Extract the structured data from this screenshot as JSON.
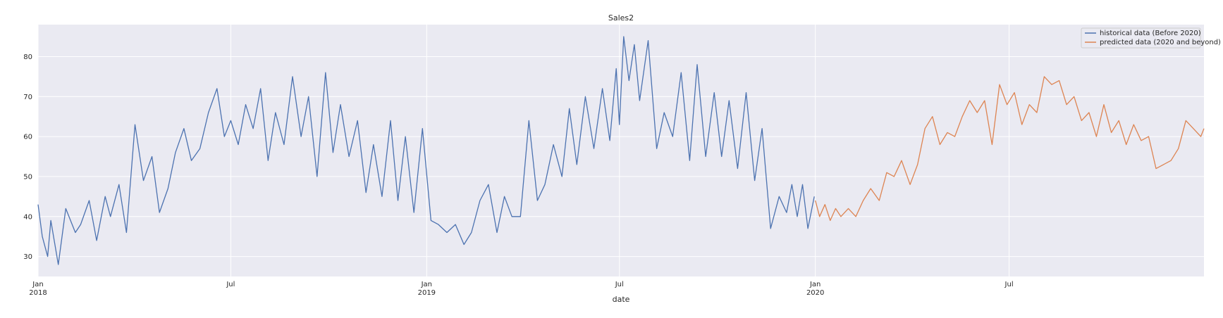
{
  "chart_data": {
    "type": "line",
    "title": "Sales2",
    "xlabel": "date",
    "ylabel": "",
    "ylim": [
      25,
      88
    ],
    "y_ticks": [
      30,
      40,
      50,
      60,
      70,
      80
    ],
    "x_range": [
      "2018-01-01",
      "2020-12-31"
    ],
    "x_ticks": [
      {
        "date": "2018-01-01",
        "label": "Jan",
        "sublabel": "2018"
      },
      {
        "date": "2018-07-01",
        "label": "Jul",
        "sublabel": ""
      },
      {
        "date": "2019-01-01",
        "label": "Jan",
        "sublabel": "2019"
      },
      {
        "date": "2019-07-01",
        "label": "Jul",
        "sublabel": ""
      },
      {
        "date": "2020-01-01",
        "label": "Jan",
        "sublabel": "2020"
      },
      {
        "date": "2020-07-01",
        "label": "Jul",
        "sublabel": ""
      }
    ],
    "grid": true,
    "legend_position": "top-right",
    "series": [
      {
        "name": "historical data (Before 2020)",
        "color": "#4c72b0",
        "x": [
          "2018-01-01",
          "2018-01-05",
          "2018-01-10",
          "2018-01-13",
          "2018-01-20",
          "2018-01-27",
          "2018-02-05",
          "2018-02-10",
          "2018-02-18",
          "2018-02-25",
          "2018-03-05",
          "2018-03-10",
          "2018-03-18",
          "2018-03-25",
          "2018-04-02",
          "2018-04-10",
          "2018-04-18",
          "2018-04-25",
          "2018-05-03",
          "2018-05-10",
          "2018-05-18",
          "2018-05-25",
          "2018-06-02",
          "2018-06-10",
          "2018-06-18",
          "2018-06-25",
          "2018-07-01",
          "2018-07-08",
          "2018-07-15",
          "2018-07-22",
          "2018-07-29",
          "2018-08-05",
          "2018-08-12",
          "2018-08-20",
          "2018-08-28",
          "2018-09-05",
          "2018-09-12",
          "2018-09-20",
          "2018-09-28",
          "2018-10-05",
          "2018-10-12",
          "2018-10-20",
          "2018-10-28",
          "2018-11-05",
          "2018-11-12",
          "2018-11-20",
          "2018-11-28",
          "2018-12-05",
          "2018-12-12",
          "2018-12-20",
          "2018-12-28",
          "2019-01-05",
          "2019-01-12",
          "2019-01-20",
          "2019-01-28",
          "2019-02-05",
          "2019-02-12",
          "2019-02-20",
          "2019-02-28",
          "2019-03-08",
          "2019-03-15",
          "2019-03-22",
          "2019-03-30",
          "2019-04-07",
          "2019-04-15",
          "2019-04-22",
          "2019-04-30",
          "2019-05-08",
          "2019-05-15",
          "2019-05-22",
          "2019-05-30",
          "2019-06-07",
          "2019-06-15",
          "2019-06-22",
          "2019-06-28",
          "2019-07-01",
          "2019-07-05",
          "2019-07-10",
          "2019-07-15",
          "2019-07-20",
          "2019-07-28",
          "2019-08-05",
          "2019-08-12",
          "2019-08-20",
          "2019-08-28",
          "2019-09-05",
          "2019-09-12",
          "2019-09-20",
          "2019-09-28",
          "2019-10-05",
          "2019-10-12",
          "2019-10-20",
          "2019-10-28",
          "2019-11-05",
          "2019-11-12",
          "2019-11-20",
          "2019-11-28",
          "2019-12-05",
          "2019-12-10",
          "2019-12-15",
          "2019-12-20",
          "2019-12-25",
          "2019-12-31"
        ],
        "values": [
          43,
          35,
          30,
          39,
          28,
          42,
          36,
          38,
          44,
          34,
          45,
          40,
          48,
          36,
          63,
          49,
          55,
          41,
          47,
          56,
          62,
          54,
          57,
          66,
          72,
          60,
          64,
          58,
          68,
          62,
          72,
          54,
          66,
          58,
          75,
          60,
          70,
          50,
          76,
          56,
          68,
          55,
          64,
          46,
          58,
          45,
          64,
          44,
          60,
          41,
          62,
          39,
          38,
          36,
          38,
          33,
          36,
          44,
          48,
          36,
          45,
          40,
          40,
          64,
          44,
          48,
          58,
          50,
          67,
          53,
          70,
          57,
          72,
          59,
          77,
          63,
          85,
          74,
          83,
          69,
          84,
          57,
          66,
          60,
          76,
          54,
          78,
          55,
          71,
          55,
          69,
          52,
          71,
          49,
          62,
          37,
          45,
          41,
          48,
          40,
          48,
          37,
          45
        ]
      },
      {
        "name": "predicted data (2020 and beyond)",
        "color": "#dd8452",
        "x": [
          "2020-01-01",
          "2020-01-05",
          "2020-01-10",
          "2020-01-15",
          "2020-01-20",
          "2020-01-25",
          "2020-02-01",
          "2020-02-08",
          "2020-02-15",
          "2020-02-22",
          "2020-03-01",
          "2020-03-08",
          "2020-03-15",
          "2020-03-22",
          "2020-03-30",
          "2020-04-06",
          "2020-04-13",
          "2020-04-20",
          "2020-04-27",
          "2020-05-04",
          "2020-05-11",
          "2020-05-18",
          "2020-05-25",
          "2020-06-01",
          "2020-06-08",
          "2020-06-15",
          "2020-06-22",
          "2020-06-29",
          "2020-07-06",
          "2020-07-13",
          "2020-07-20",
          "2020-07-27",
          "2020-08-03",
          "2020-08-10",
          "2020-08-17",
          "2020-08-24",
          "2020-08-31",
          "2020-09-07",
          "2020-09-14",
          "2020-09-21",
          "2020-09-28",
          "2020-10-05",
          "2020-10-12",
          "2020-10-19",
          "2020-10-26",
          "2020-11-02",
          "2020-11-09",
          "2020-11-16",
          "2020-11-23",
          "2020-11-30",
          "2020-12-07",
          "2020-12-14",
          "2020-12-21",
          "2020-12-28",
          "2020-12-31"
        ],
        "values": [
          44,
          40,
          43,
          39,
          42,
          40,
          42,
          40,
          44,
          47,
          44,
          51,
          50,
          54,
          48,
          53,
          62,
          65,
          58,
          61,
          60,
          65,
          69,
          66,
          69,
          58,
          73,
          68,
          71,
          63,
          68,
          66,
          75,
          73,
          74,
          68,
          70,
          64,
          66,
          60,
          68,
          61,
          64,
          58,
          63,
          59,
          60,
          52,
          53,
          54,
          57,
          64,
          62,
          60,
          62
        ]
      }
    ]
  }
}
